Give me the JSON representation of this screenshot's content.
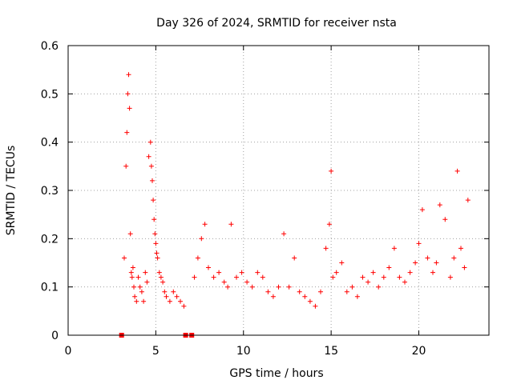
{
  "chart_data": {
    "type": "scatter",
    "title": "Day 326 of 2024, SRMTID for receiver nsta",
    "xlabel": "GPS time / hours",
    "ylabel": "SRMTID / TECUs",
    "xlim": [
      0,
      24
    ],
    "ylim": [
      0,
      0.6
    ],
    "xticks": [
      0,
      5,
      10,
      15,
      20
    ],
    "yticks": [
      0,
      0.1,
      0.2,
      0.3,
      0.4,
      0.5,
      0.6
    ],
    "xtick_labels": [
      "0",
      "5",
      "10",
      "15",
      "20"
    ],
    "ytick_labels": [
      "0",
      "0.1",
      "0.2",
      "0.3",
      "0.4",
      "0.5",
      "0.6"
    ],
    "grid": true,
    "marker": "plus",
    "series_color": "#ff0000",
    "zero_markers_x": [
      3.05,
      6.7,
      7.05
    ],
    "series": [
      {
        "name": "SRMTID",
        "x": [
          3.2,
          3.3,
          3.35,
          3.4,
          3.45,
          3.5,
          3.55,
          3.6,
          3.65,
          3.7,
          3.75,
          3.8,
          3.9,
          4.0,
          4.1,
          4.2,
          4.3,
          4.4,
          4.5,
          4.6,
          4.7,
          4.75,
          4.8,
          4.85,
          4.9,
          4.95,
          5.0,
          5.05,
          5.1,
          5.2,
          5.3,
          5.4,
          5.5,
          5.6,
          5.8,
          6.0,
          6.2,
          6.4,
          6.6,
          7.2,
          7.4,
          7.6,
          7.8,
          8.0,
          8.3,
          8.6,
          8.9,
          9.1,
          9.3,
          9.6,
          9.9,
          10.2,
          10.5,
          10.8,
          11.1,
          11.4,
          11.7,
          12.0,
          12.3,
          12.6,
          12.9,
          13.2,
          13.5,
          13.8,
          14.1,
          14.4,
          14.7,
          14.9,
          15.0,
          15.1,
          15.3,
          15.6,
          15.9,
          16.2,
          16.5,
          16.8,
          17.1,
          17.4,
          17.7,
          18.0,
          18.3,
          18.6,
          18.9,
          19.2,
          19.5,
          19.8,
          20.0,
          20.2,
          20.5,
          20.8,
          21.0,
          21.2,
          21.5,
          21.8,
          22.0,
          22.2,
          22.4,
          22.6,
          22.8
        ],
        "y": [
          0.16,
          0.35,
          0.42,
          0.5,
          0.54,
          0.47,
          0.21,
          0.13,
          0.12,
          0.14,
          0.1,
          0.08,
          0.07,
          0.12,
          0.1,
          0.09,
          0.07,
          0.13,
          0.11,
          0.37,
          0.4,
          0.35,
          0.32,
          0.28,
          0.24,
          0.21,
          0.19,
          0.17,
          0.16,
          0.13,
          0.12,
          0.11,
          0.09,
          0.08,
          0.07,
          0.09,
          0.08,
          0.07,
          0.06,
          0.12,
          0.16,
          0.2,
          0.23,
          0.14,
          0.12,
          0.13,
          0.11,
          0.1,
          0.23,
          0.12,
          0.13,
          0.11,
          0.1,
          0.13,
          0.12,
          0.09,
          0.08,
          0.1,
          0.21,
          0.1,
          0.16,
          0.09,
          0.08,
          0.07,
          0.06,
          0.09,
          0.18,
          0.23,
          0.34,
          0.12,
          0.13,
          0.15,
          0.09,
          0.1,
          0.08,
          0.12,
          0.11,
          0.13,
          0.1,
          0.12,
          0.14,
          0.18,
          0.12,
          0.11,
          0.13,
          0.15,
          0.19,
          0.26,
          0.16,
          0.13,
          0.15,
          0.27,
          0.24,
          0.12,
          0.16,
          0.34,
          0.18,
          0.14,
          0.28
        ]
      }
    ]
  }
}
